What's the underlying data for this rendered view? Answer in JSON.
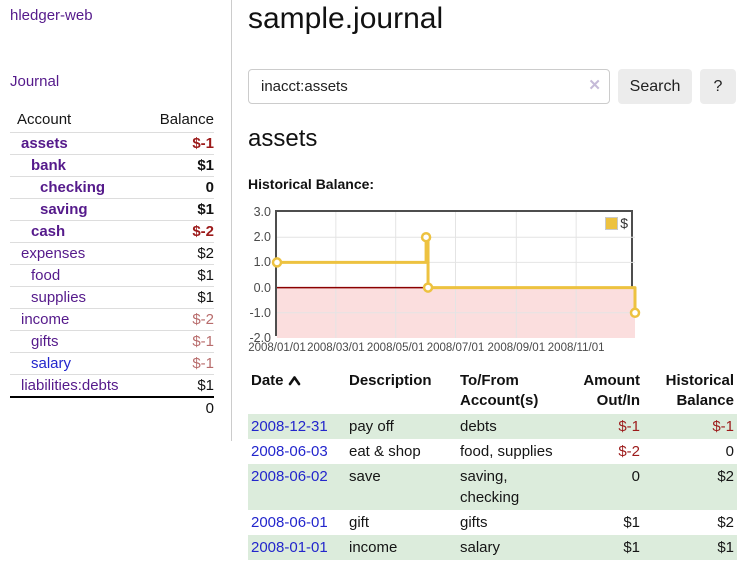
{
  "sidebar": {
    "app_title": "hledger-web",
    "journal_link": "Journal",
    "table": {
      "account_header": "Account",
      "balance_header": "Balance",
      "accounts": [
        {
          "name": "assets",
          "balance": "$-1"
        },
        {
          "name": "bank",
          "balance": "$1"
        },
        {
          "name": "checking",
          "balance": "0"
        },
        {
          "name": "saving",
          "balance": "$1"
        },
        {
          "name": "cash",
          "balance": "$-2"
        },
        {
          "name": "expenses",
          "balance": "$2"
        },
        {
          "name": "food",
          "balance": "$1"
        },
        {
          "name": "supplies",
          "balance": "$1"
        },
        {
          "name": "income",
          "balance": "$-2"
        },
        {
          "name": "gifts",
          "balance": "$-1"
        },
        {
          "name": "salary",
          "balance": "$-1"
        },
        {
          "name": "liabilities:debts",
          "balance": "$1"
        }
      ],
      "total": "0"
    }
  },
  "header": {
    "title": "sample.journal"
  },
  "search": {
    "value": "inacct:assets",
    "clear_icon": "✕",
    "button_label": "Search",
    "help_label": "?"
  },
  "account_page": {
    "heading": "assets",
    "chart_label": "Historical Balance:"
  },
  "chart_data": {
    "type": "line",
    "step": true,
    "title": "Historical Balance:",
    "legend_position": "top-right",
    "grid": true,
    "ylim": [
      -2,
      3
    ],
    "xlim_days": [
      0,
      365
    ],
    "y_ticks": [
      3.0,
      2.0,
      1.0,
      0.0,
      -1.0,
      -2.0
    ],
    "x_ticks": [
      {
        "label": "2008/01/01",
        "day": 0
      },
      {
        "label": "2008/03/01",
        "day": 60
      },
      {
        "label": "2008/05/01",
        "day": 121
      },
      {
        "label": "2008/07/01",
        "day": 182
      },
      {
        "label": "2008/09/01",
        "day": 244
      },
      {
        "label": "2008/11/01",
        "day": 305
      }
    ],
    "series": [
      {
        "name": "$",
        "color": "#edc240",
        "points": [
          {
            "date": "2008-01-01",
            "day": 0,
            "value": 1
          },
          {
            "date": "2008-06-01",
            "day": 152,
            "value": 2
          },
          {
            "date": "2008-06-03",
            "day": 154,
            "value": 0
          },
          {
            "date": "2008-12-31",
            "day": 365,
            "value": -1
          }
        ]
      }
    ],
    "colors": {
      "negative_region": "#fbdede",
      "zero_line": "#8b0000",
      "gridline": "#e4e4e4",
      "marker_fill": "#ffffff"
    }
  },
  "register": {
    "headers": {
      "date": "Date",
      "description": "Description",
      "accounts": "To/From Account(s)",
      "amount": "Amount Out/In",
      "balance": "Historical Balance"
    },
    "rows": [
      {
        "date": "2008-12-31",
        "description": "pay off",
        "accounts": "debts",
        "amount": "$-1",
        "balance": "$-1"
      },
      {
        "date": "2008-06-03",
        "description": "eat & shop",
        "accounts": "food, supplies",
        "amount": "$-2",
        "balance": "0"
      },
      {
        "date": "2008-06-02",
        "description": "save",
        "accounts": "saving, checking",
        "amount": "0",
        "balance": "$2"
      },
      {
        "date": "2008-06-01",
        "description": "gift",
        "accounts": "gifts",
        "amount": "$1",
        "balance": "$2"
      },
      {
        "date": "2008-01-01",
        "description": "income",
        "accounts": "salary",
        "amount": "$1",
        "balance": "$1"
      }
    ]
  }
}
